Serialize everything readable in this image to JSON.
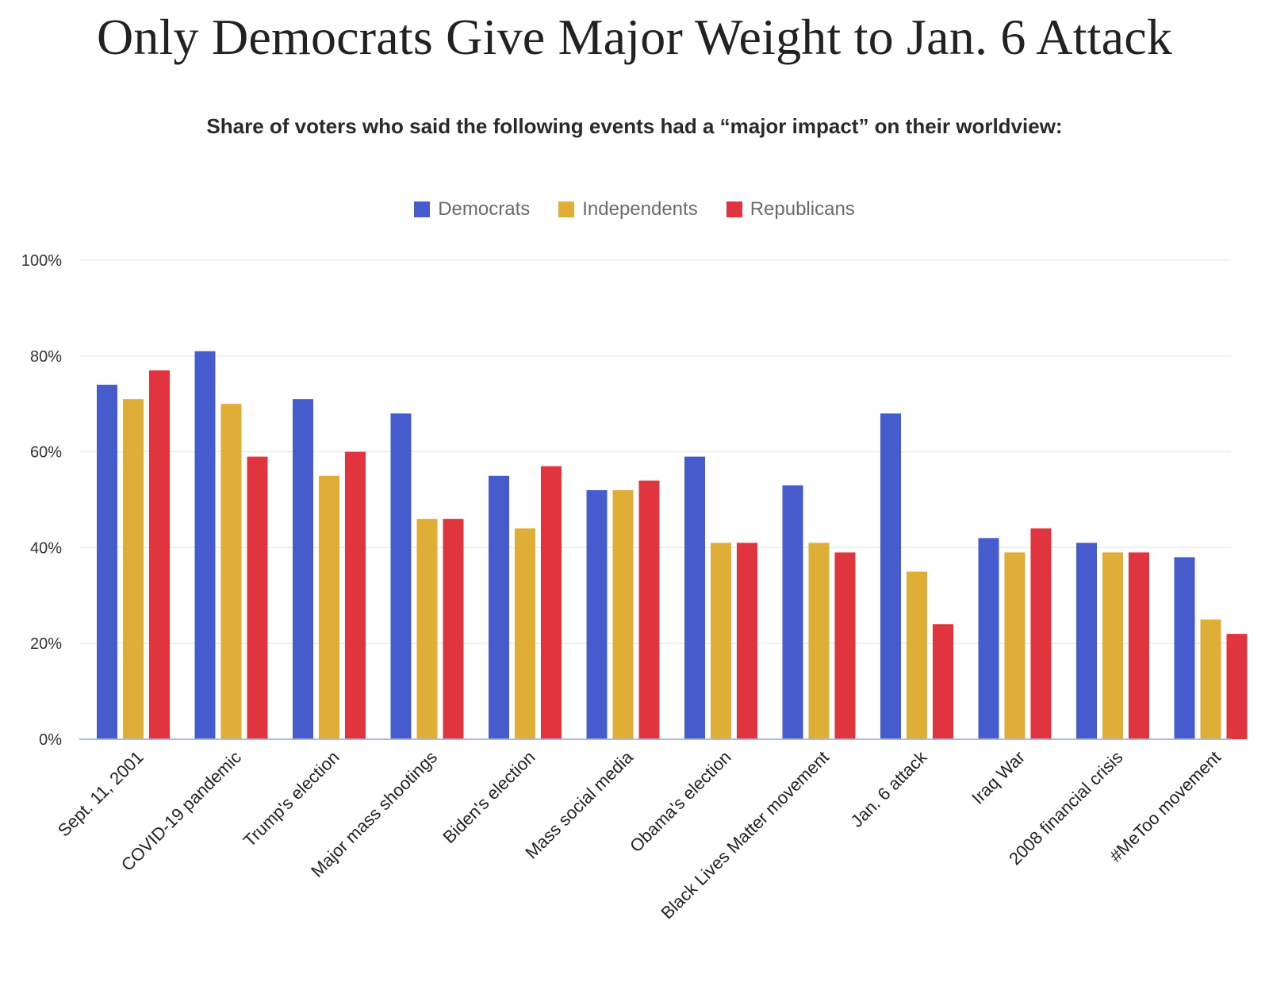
{
  "title": "Only Democrats Give Major Weight to Jan. 6 Attack",
  "subtitle": "Share of voters who said the following events had a “major impact” on their worldview:",
  "colors": {
    "democrats": "#465ccd",
    "independents": "#deae36",
    "republicans": "#e0353f",
    "grid": "#e3e3e3",
    "axis": "#aab8e6"
  },
  "chart_data": {
    "type": "bar",
    "categories": [
      "Sept. 11, 2001",
      "COVID-19 pandemic",
      "Trump's election",
      "Major mass shootings",
      "Biden's election",
      "Mass social media",
      "Obama's election",
      "Black Lives Matter movement",
      "Jan. 6 attack",
      "Iraq War",
      "2008 financial crisis",
      "#MeToo movement"
    ],
    "series": [
      {
        "name": "Democrats",
        "color": "#465ccd",
        "values": [
          74,
          81,
          71,
          68,
          55,
          52,
          59,
          53,
          68,
          42,
          41,
          38
        ]
      },
      {
        "name": "Independents",
        "color": "#deae36",
        "values": [
          71,
          70,
          55,
          46,
          44,
          52,
          41,
          41,
          35,
          39,
          39,
          25
        ]
      },
      {
        "name": "Republicans",
        "color": "#e0353f",
        "values": [
          77,
          59,
          60,
          46,
          57,
          54,
          41,
          39,
          24,
          44,
          39,
          22
        ]
      }
    ],
    "yticks": [
      "0%",
      "20%",
      "40%",
      "60%",
      "80%",
      "100%"
    ],
    "ylim": [
      0,
      100
    ],
    "grid": true,
    "legend_position": "top-center",
    "xlabel": "",
    "ylabel": ""
  }
}
